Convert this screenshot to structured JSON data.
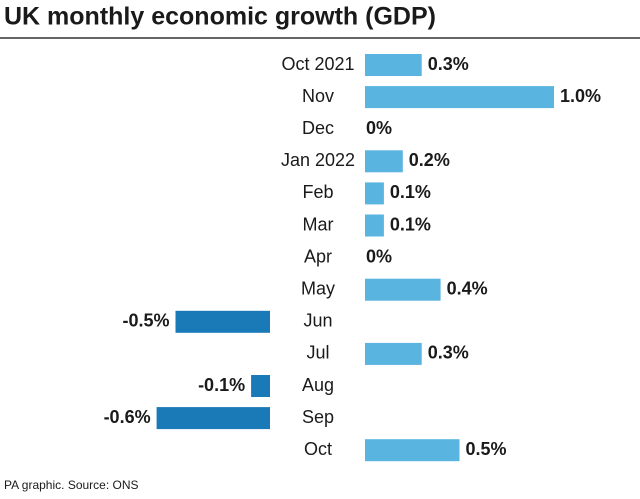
{
  "chart_data": {
    "type": "bar",
    "orientation": "horizontal",
    "title": "UK monthly economic growth (GDP)",
    "source": "PA graphic. Source: ONS",
    "categories": [
      "Oct 2021",
      "Nov",
      "Dec",
      "Jan 2022",
      "Feb",
      "Mar",
      "Apr",
      "May",
      "Jun",
      "Jul",
      "Aug",
      "Sep",
      "Oct"
    ],
    "values": [
      0.3,
      1.0,
      0,
      0.2,
      0.1,
      0.1,
      0,
      0.4,
      -0.5,
      0.3,
      -0.1,
      -0.6,
      0.5
    ],
    "value_labels": [
      "0.3%",
      "1.0%",
      "0%",
      "0.2%",
      "0.1%",
      "0.1%",
      "0%",
      "0.4%",
      "-0.5%",
      "0.3%",
      "-0.1%",
      "-0.6%",
      "0.5%"
    ],
    "color": "#5ab4e0",
    "negative_color": "#1a7ab8"
  }
}
